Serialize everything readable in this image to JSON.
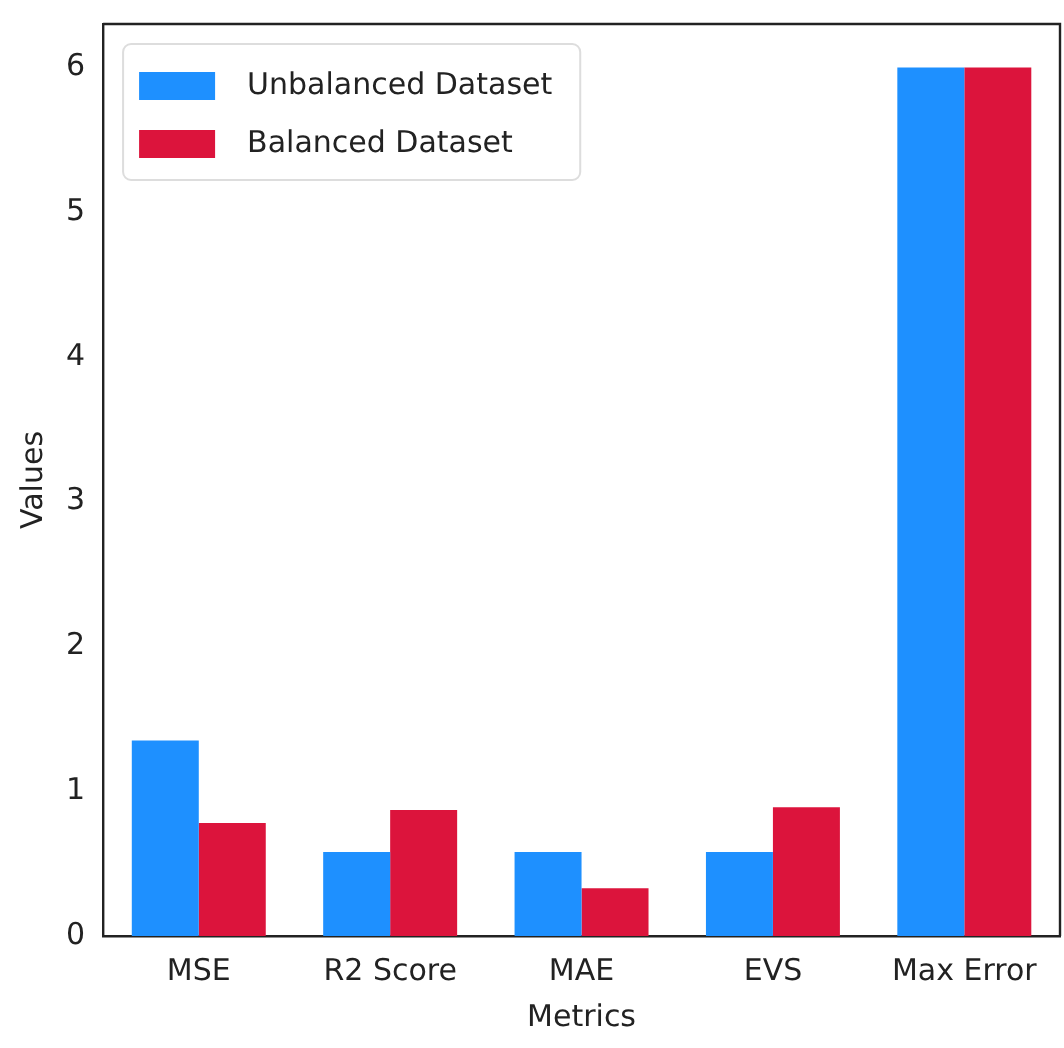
{
  "chart_data": {
    "type": "bar",
    "xlabel": "Metrics",
    "ylabel": "Values",
    "categories": [
      "MSE",
      "R2 Score",
      "MAE",
      "EVS",
      "Max Error"
    ],
    "series": [
      {
        "name": "Unbalanced Dataset",
        "color": "#1e90ff",
        "values": [
          1.35,
          0.58,
          0.58,
          0.58,
          6
        ]
      },
      {
        "name": "Balanced Dataset",
        "color": "#dc143c",
        "values": [
          0.78,
          0.87,
          0.33,
          0.89,
          6
        ]
      }
    ],
    "ylim": [
      0,
      6.3
    ],
    "yticks": [
      0,
      1,
      2,
      3,
      4,
      5,
      6
    ],
    "grid": false,
    "legend": "top left"
  }
}
